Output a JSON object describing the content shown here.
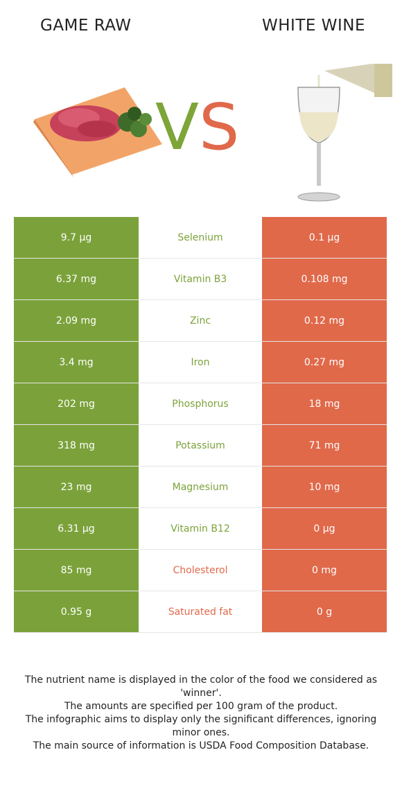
{
  "header": {
    "left_title": "GAME RAW",
    "vs_v": "V",
    "vs_s": "S",
    "right_title": "WHITE WINE"
  },
  "colors": {
    "left": "#7ba23a",
    "right": "#e0694a"
  },
  "rows": [
    {
      "left": "9.7 µg",
      "nutrient": "Selenium",
      "right": "0.1 µg",
      "winner": "left"
    },
    {
      "left": "6.37 mg",
      "nutrient": "Vitamin B3",
      "right": "0.108 mg",
      "winner": "left"
    },
    {
      "left": "2.09 mg",
      "nutrient": "Zinc",
      "right": "0.12 mg",
      "winner": "left"
    },
    {
      "left": "3.4 mg",
      "nutrient": "Iron",
      "right": "0.27 mg",
      "winner": "left"
    },
    {
      "left": "202 mg",
      "nutrient": "Phosphorus",
      "right": "18 mg",
      "winner": "left"
    },
    {
      "left": "318 mg",
      "nutrient": "Potassium",
      "right": "71 mg",
      "winner": "left"
    },
    {
      "left": "23 mg",
      "nutrient": "Magnesium",
      "right": "10 mg",
      "winner": "left"
    },
    {
      "left": "6.31 µg",
      "nutrient": "Vitamin B12",
      "right": "0 µg",
      "winner": "left"
    },
    {
      "left": "85 mg",
      "nutrient": "Cholesterol",
      "right": "0 mg",
      "winner": "right"
    },
    {
      "left": "0.95 g",
      "nutrient": "Saturated fat",
      "right": "0 g",
      "winner": "right"
    }
  ],
  "footer": [
    "The nutrient name is displayed in the color of the food we considered as 'winner'.",
    "The amounts are specified per 100 gram of the product.",
    "The infographic aims to display only the significant differences, ignoring minor ones.",
    "The main source of information is USDA Food Composition Database."
  ]
}
